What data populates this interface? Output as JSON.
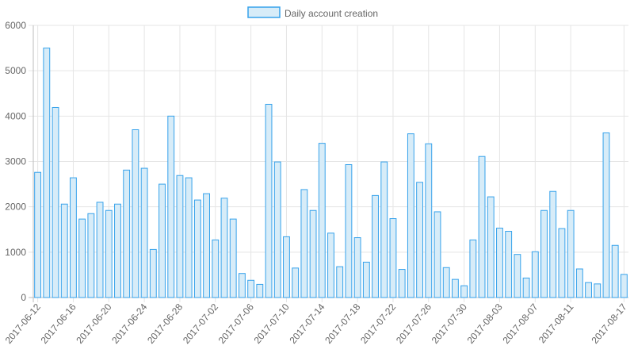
{
  "chart_data": {
    "type": "bar",
    "title": "",
    "xlabel": "",
    "ylabel": "",
    "ylim": [
      0,
      6000
    ],
    "yticks": [
      0,
      1000,
      2000,
      3000,
      4000,
      5000,
      6000
    ],
    "grid": true,
    "legend_position": "top-center",
    "bar_fill": "#d7ecf8",
    "bar_stroke": "#36a2eb",
    "grid_color": "#e5e5e5",
    "categories": [
      "2017-06-12",
      "2017-06-13",
      "2017-06-14",
      "2017-06-15",
      "2017-06-16",
      "2017-06-17",
      "2017-06-18",
      "2017-06-19",
      "2017-06-20",
      "2017-06-21",
      "2017-06-22",
      "2017-06-23",
      "2017-06-24",
      "2017-06-25",
      "2017-06-26",
      "2017-06-27",
      "2017-06-28",
      "2017-06-29",
      "2017-06-30",
      "2017-07-01",
      "2017-07-02",
      "2017-07-03",
      "2017-07-04",
      "2017-07-05",
      "2017-07-06",
      "2017-07-07",
      "2017-07-08",
      "2017-07-09",
      "2017-07-10",
      "2017-07-11",
      "2017-07-12",
      "2017-07-13",
      "2017-07-14",
      "2017-07-15",
      "2017-07-16",
      "2017-07-17",
      "2017-07-18",
      "2017-07-19",
      "2017-07-20",
      "2017-07-21",
      "2017-07-22",
      "2017-07-23",
      "2017-07-24",
      "2017-07-25",
      "2017-07-26",
      "2017-07-27",
      "2017-07-28",
      "2017-07-29",
      "2017-07-30",
      "2017-07-31",
      "2017-08-01",
      "2017-08-02",
      "2017-08-03",
      "2017-08-04",
      "2017-08-05",
      "2017-08-06",
      "2017-08-07",
      "2017-08-08",
      "2017-08-09",
      "2017-08-10",
      "2017-08-11",
      "2017-08-12",
      "2017-08-13",
      "2017-08-14",
      "2017-08-15",
      "2017-08-16",
      "2017-08-17"
    ],
    "x_tick_labels": [
      "2017-06-12",
      "2017-06-16",
      "2017-06-20",
      "2017-06-24",
      "2017-06-28",
      "2017-07-02",
      "2017-07-06",
      "2017-07-10",
      "2017-07-14",
      "2017-07-18",
      "2017-07-22",
      "2017-07-26",
      "2017-07-30",
      "2017-08-03",
      "2017-08-07",
      "2017-08-11",
      "2017-08-17"
    ],
    "series": [
      {
        "name": "Daily account creation",
        "values": [
          2760,
          5500,
          4190,
          2060,
          2640,
          1730,
          1850,
          2100,
          1920,
          2060,
          2810,
          3700,
          2850,
          1060,
          2500,
          4000,
          2690,
          2640,
          2150,
          2290,
          1270,
          2190,
          1730,
          530,
          380,
          290,
          4260,
          2990,
          1340,
          650,
          2380,
          1920,
          3400,
          1420,
          680,
          2930,
          1320,
          780,
          2250,
          2990,
          1740,
          620,
          3610,
          2540,
          3390,
          1890,
          660,
          400,
          260,
          1270,
          3110,
          2220,
          1530,
          1460,
          950,
          430,
          1010,
          1920,
          2340,
          1520,
          1920,
          630,
          330,
          300,
          3630,
          1150,
          510
        ]
      }
    ]
  }
}
